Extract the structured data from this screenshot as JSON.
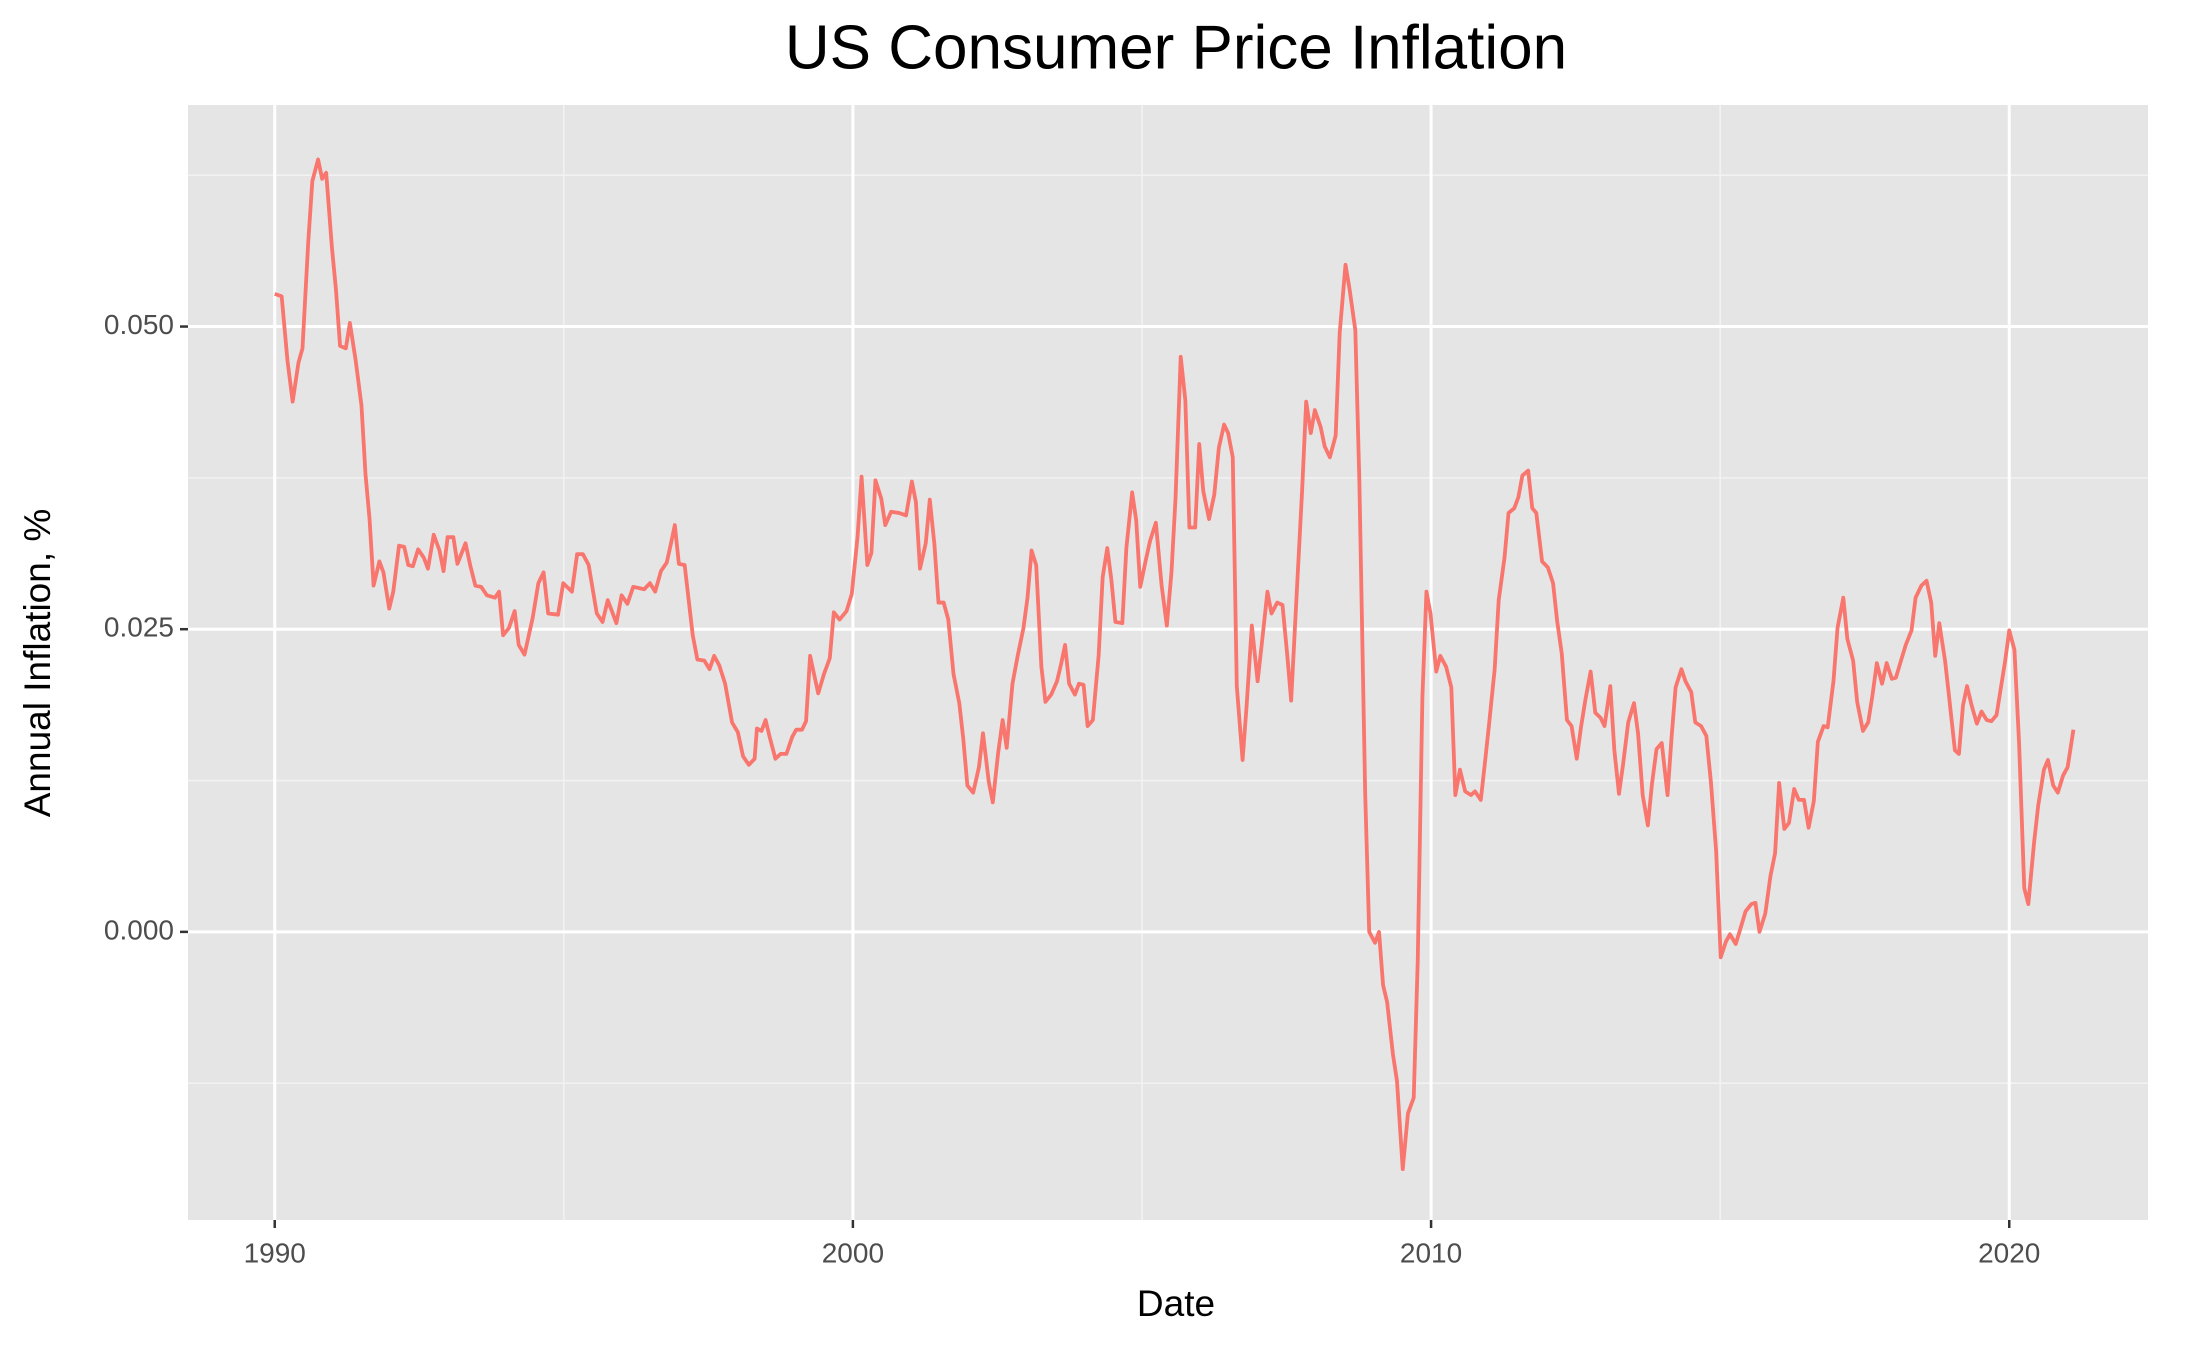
{
  "chart_data": {
    "type": "line",
    "title": "US Consumer Price Inflation",
    "x_label": "Date",
    "y_label": "Annual Inflation, %",
    "color": "#F8766D",
    "grid": true,
    "xlim": [
      1988.5,
      2022.4
    ],
    "xticks": [
      1990,
      2000,
      2010,
      2020
    ],
    "ylim": [
      -0.0238,
      0.0683
    ],
    "yticks": [
      {
        "value": 0,
        "label": "0.000"
      },
      {
        "value": 0.025,
        "label": "0.025"
      },
      {
        "value": 0.05,
        "label": "0.050"
      }
    ],
    "x": [
      1990,
      1990.12,
      1990.22,
      1990.31,
      1990.41,
      1990.48,
      1990.58,
      1990.65,
      1990.75,
      1990.82,
      1990.89,
      1990.99,
      1991.06,
      1991.13,
      1991.23,
      1991.3,
      1991.4,
      1991.5,
      1991.57,
      1991.64,
      1991.71,
      1991.81,
      1991.88,
      1991.98,
      1992.05,
      1992.15,
      1992.24,
      1992.31,
      1992.39,
      1992.48,
      1992.58,
      1992.65,
      1992.75,
      1992.85,
      1992.92,
      1992.99,
      1993.09,
      1993.16,
      1993.3,
      1993.38,
      1993.47,
      1993.57,
      1993.67,
      1993.81,
      1993.88,
      1993.95,
      1994.05,
      1994.15,
      1994.22,
      1994.32,
      1994.46,
      1994.56,
      1994.65,
      1994.73,
      1994.9,
      1994.99,
      1995.14,
      1995.23,
      1995.33,
      1995.43,
      1995.57,
      1995.67,
      1995.76,
      1995.91,
      1996,
      1996.1,
      1996.2,
      1996.39,
      1996.49,
      1996.58,
      1996.68,
      1996.78,
      1996.85,
      1996.92,
      1996.99,
      1997.09,
      1997.23,
      1997.31,
      1997.43,
      1997.52,
      1997.6,
      1997.69,
      1997.79,
      1997.91,
      1998.01,
      1998.1,
      1998.2,
      1998.3,
      1998.34,
      1998.42,
      1998.49,
      1998.56,
      1998.66,
      1998.75,
      1998.85,
      1998.95,
      1999.02,
      1999.12,
      1999.19,
      1999.26,
      1999.4,
      1999.5,
      1999.6,
      1999.67,
      1999.77,
      1999.89,
      1999.98,
      2000.08,
      2000.15,
      2000.25,
      2000.32,
      2000.39,
      2000.49,
      2000.56,
      2000.66,
      2000.8,
      2000.92,
      2001.02,
      2001.09,
      2001.16,
      2001.26,
      2001.33,
      2001.41,
      2001.48,
      2001.57,
      2001.65,
      2001.74,
      2001.84,
      2001.91,
      2001.98,
      2002.08,
      2002.18,
      2002.25,
      2002.35,
      2002.42,
      2002.51,
      2002.59,
      2002.66,
      2002.76,
      2002.85,
      2002.95,
      2003.02,
      2003.09,
      2003.17,
      2003.26,
      2003.33,
      2003.43,
      2003.53,
      2003.6,
      2003.67,
      2003.74,
      2003.84,
      2003.91,
      2003.99,
      2004.06,
      2004.15,
      2004.25,
      2004.32,
      2004.4,
      2004.47,
      2004.54,
      2004.66,
      2004.73,
      2004.83,
      2004.9,
      2004.97,
      2005.07,
      2005.14,
      2005.24,
      2005.34,
      2005.43,
      2005.51,
      2005.58,
      2005.67,
      2005.75,
      2005.82,
      2005.92,
      2005.99,
      2006.06,
      2006.16,
      2006.25,
      2006.33,
      2006.42,
      2006.49,
      2006.57,
      2006.64,
      2006.74,
      2006.81,
      2006.9,
      2007,
      2007.07,
      2007.17,
      2007.24,
      2007.34,
      2007.43,
      2007.51,
      2007.58,
      2007.68,
      2007.77,
      2007.84,
      2007.92,
      2007.99,
      2008.09,
      2008.16,
      2008.25,
      2008.35,
      2008.42,
      2008.52,
      2008.59,
      2008.69,
      2008.76,
      2008.86,
      2008.93,
      2009.03,
      2009.1,
      2009.17,
      2009.24,
      2009.34,
      2009.41,
      2009.51,
      2009.6,
      2009.7,
      2009.77,
      2009.85,
      2009.92,
      2009.99,
      2010.09,
      2010.16,
      2010.26,
      2010.35,
      2010.42,
      2010.5,
      2010.59,
      2010.69,
      2010.76,
      2010.86,
      2010.93,
      2011,
      2011.1,
      2011.17,
      2011.27,
      2011.34,
      2011.44,
      2011.51,
      2011.58,
      2011.68,
      2011.75,
      2011.82,
      2011.92,
      2012.02,
      2012.11,
      2012.18,
      2012.26,
      2012.35,
      2012.43,
      2012.52,
      2012.59,
      2012.67,
      2012.76,
      2012.84,
      2012.93,
      2013,
      2013.1,
      2013.17,
      2013.25,
      2013.32,
      2013.41,
      2013.51,
      2013.58,
      2013.66,
      2013.75,
      2013.82,
      2013.9,
      2013.99,
      2014.09,
      2014.16,
      2014.23,
      2014.33,
      2014.4,
      2014.5,
      2014.57,
      2014.67,
      2014.76,
      2014.84,
      2014.93,
      2015.01,
      2015.1,
      2015.17,
      2015.27,
      2015.34,
      2015.44,
      2015.54,
      2015.61,
      2015.68,
      2015.78,
      2015.87,
      2015.95,
      2016.02,
      2016.11,
      2016.19,
      2016.28,
      2016.36,
      2016.45,
      2016.53,
      2016.62,
      2016.69,
      2016.79,
      2016.86,
      2016.96,
      2017.03,
      2017.13,
      2017.2,
      2017.3,
      2017.37,
      2017.47,
      2017.56,
      2017.63,
      2017.71,
      2017.8,
      2017.88,
      2017.97,
      2018.04,
      2018.14,
      2018.21,
      2018.31,
      2018.38,
      2018.48,
      2018.57,
      2018.65,
      2018.72,
      2018.79,
      2018.89,
      2018.96,
      2019.06,
      2019.13,
      2019.2,
      2019.27,
      2019.35,
      2019.44,
      2019.52,
      2019.61,
      2019.69,
      2019.78,
      2019.85,
      2019.93,
      2020,
      2020.09,
      2020.17,
      2020.26,
      2020.33,
      2020.43,
      2020.5,
      2020.6,
      2020.67,
      2020.76,
      2020.84,
      2020.93,
      2021.01,
      2021.11
    ],
    "values": [
      0.0527,
      0.0525,
      0.0472,
      0.0438,
      0.047,
      0.0482,
      0.057,
      0.062,
      0.0638,
      0.0622,
      0.0627,
      0.0565,
      0.053,
      0.0484,
      0.0482,
      0.0503,
      0.0472,
      0.0435,
      0.0378,
      0.0341,
      0.0286,
      0.0306,
      0.0297,
      0.0267,
      0.0281,
      0.0319,
      0.0318,
      0.0303,
      0.0302,
      0.0316,
      0.0309,
      0.03,
      0.0328,
      0.0315,
      0.0298,
      0.0326,
      0.0326,
      0.0304,
      0.0321,
      0.0303,
      0.0286,
      0.0285,
      0.0278,
      0.0276,
      0.0281,
      0.0245,
      0.0251,
      0.0265,
      0.0237,
      0.0229,
      0.0259,
      0.0288,
      0.0297,
      0.0263,
      0.0262,
      0.0288,
      0.0281,
      0.0312,
      0.0312,
      0.0303,
      0.0263,
      0.0256,
      0.0274,
      0.0255,
      0.0278,
      0.0271,
      0.0285,
      0.0283,
      0.0288,
      0.0281,
      0.0298,
      0.0305,
      0.032,
      0.0336,
      0.0304,
      0.0303,
      0.0245,
      0.0225,
      0.0224,
      0.0217,
      0.0228,
      0.022,
      0.0205,
      0.0173,
      0.0165,
      0.0145,
      0.0138,
      0.0143,
      0.0168,
      0.0166,
      0.0175,
      0.0161,
      0.0143,
      0.0147,
      0.0147,
      0.0161,
      0.0167,
      0.0167,
      0.0174,
      0.0228,
      0.0197,
      0.0213,
      0.0226,
      0.0264,
      0.0258,
      0.0265,
      0.0279,
      0.0326,
      0.0376,
      0.0303,
      0.0313,
      0.0373,
      0.0358,
      0.0336,
      0.0347,
      0.0346,
      0.0344,
      0.0372,
      0.0355,
      0.03,
      0.0321,
      0.0357,
      0.032,
      0.0272,
      0.0272,
      0.0258,
      0.0213,
      0.0189,
      0.0159,
      0.0121,
      0.0115,
      0.0136,
      0.0164,
      0.0124,
      0.0107,
      0.0147,
      0.0175,
      0.0152,
      0.0205,
      0.0228,
      0.0251,
      0.0276,
      0.0315,
      0.0303,
      0.0219,
      0.019,
      0.0196,
      0.0207,
      0.0221,
      0.0237,
      0.0205,
      0.0196,
      0.0205,
      0.0204,
      0.017,
      0.0175,
      0.0228,
      0.0293,
      0.0317,
      0.0291,
      0.0256,
      0.0255,
      0.0317,
      0.0363,
      0.034,
      0.0285,
      0.0308,
      0.0323,
      0.0338,
      0.0286,
      0.0253,
      0.0297,
      0.0358,
      0.0475,
      0.0439,
      0.0334,
      0.0334,
      0.0403,
      0.0364,
      0.0341,
      0.0361,
      0.04,
      0.0419,
      0.0412,
      0.0392,
      0.0203,
      0.0142,
      0.0187,
      0.0253,
      0.0207,
      0.0237,
      0.0281,
      0.0263,
      0.0272,
      0.027,
      0.023,
      0.0191,
      0.0283,
      0.0365,
      0.0438,
      0.0412,
      0.0431,
      0.0417,
      0.0401,
      0.0392,
      0.041,
      0.0495,
      0.0551,
      0.0531,
      0.0497,
      0.0372,
      0.0115,
      0,
      -0.0009,
      0,
      -0.0044,
      -0.0058,
      -0.0101,
      -0.0123,
      -0.0196,
      -0.015,
      -0.0137,
      -0.0023,
      0.0194,
      0.0281,
      0.0263,
      0.0215,
      0.0228,
      0.0219,
      0.0202,
      0.0113,
      0.0134,
      0.0116,
      0.0113,
      0.0116,
      0.0109,
      0.0139,
      0.017,
      0.0217,
      0.0274,
      0.0309,
      0.0346,
      0.035,
      0.0359,
      0.0377,
      0.0381,
      0.035,
      0.0346,
      0.0306,
      0.0301,
      0.0288,
      0.0257,
      0.023,
      0.0175,
      0.017,
      0.0143,
      0.0168,
      0.0192,
      0.0215,
      0.0181,
      0.0177,
      0.017,
      0.0203,
      0.015,
      0.0114,
      0.0138,
      0.0173,
      0.0189,
      0.0164,
      0.0113,
      0.0088,
      0.0122,
      0.0151,
      0.0156,
      0.0113,
      0.0161,
      0.0202,
      0.0217,
      0.0207,
      0.0198,
      0.0173,
      0.017,
      0.0162,
      0.0124,
      0.0067,
      -0.0021,
      -0.0008,
      -0.0002,
      -0.001,
      0.0001,
      0.0017,
      0.0023,
      0.0024,
      0,
      0.0015,
      0.0046,
      0.0065,
      0.0123,
      0.0085,
      0.009,
      0.0118,
      0.0109,
      0.0109,
      0.0086,
      0.0108,
      0.0157,
      0.017,
      0.0169,
      0.0207,
      0.0251,
      0.0276,
      0.0242,
      0.0224,
      0.019,
      0.0166,
      0.0173,
      0.0194,
      0.0222,
      0.0205,
      0.0222,
      0.0209,
      0.021,
      0.0226,
      0.0237,
      0.0249,
      0.0276,
      0.0286,
      0.029,
      0.0272,
      0.0228,
      0.0255,
      0.0224,
      0.0194,
      0.015,
      0.0147,
      0.0187,
      0.0203,
      0.0187,
      0.0172,
      0.0182,
      0.0175,
      0.0174,
      0.0179,
      0.02,
      0.0224,
      0.0249,
      0.0233,
      0.0156,
      0.0036,
      0.0023,
      0.0074,
      0.0104,
      0.0134,
      0.0142,
      0.0121,
      0.0115,
      0.0129,
      0.0136,
      0.0167
    ]
  }
}
